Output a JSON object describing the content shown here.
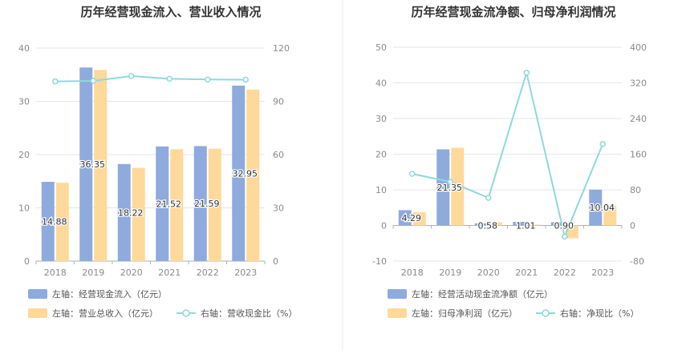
{
  "colors": {
    "bar_left": "#8FAADC",
    "bar_right": "#FFD99A",
    "line": "#8FD9DC",
    "grid": "#E6E6E6",
    "axis": "#B0B0B0"
  },
  "chart_data": [
    {
      "type": "bar",
      "title": "历年经营现金流入、营业收入情况",
      "categories": [
        "2018",
        "2019",
        "2020",
        "2021",
        "2022",
        "2023"
      ],
      "left_ylim": [
        0,
        40
      ],
      "left_ticks": [
        "0",
        "10",
        "20",
        "30",
        "40"
      ],
      "right_ylim": [
        0,
        120
      ],
      "right_ticks": [
        "0",
        "30",
        "60",
        "90",
        "120"
      ],
      "series": [
        {
          "name": "左轴：经营现金流入（亿元）",
          "axis": "left",
          "kind": "bar",
          "values": [
            14.88,
            36.35,
            18.22,
            21.52,
            21.59,
            32.95
          ]
        },
        {
          "name": "左轴：营业总收入（亿元）",
          "axis": "left",
          "kind": "bar",
          "values": [
            14.7,
            35.9,
            17.5,
            21.0,
            21.1,
            32.2
          ]
        },
        {
          "name": "右轴：营收现金比（%）",
          "axis": "right",
          "kind": "line",
          "values": [
            101.2,
            101.5,
            104.2,
            102.7,
            102.3,
            102.2
          ]
        }
      ],
      "data_labels": [
        "14.88",
        "36.35",
        "18.22",
        "21.52",
        "21.59",
        "32.95"
      ],
      "legend": [
        {
          "label": "左轴：经营现金流入（亿元）",
          "kind": "bar-left"
        },
        {
          "label": "左轴：营业总收入（亿元）",
          "kind": "bar-right"
        },
        {
          "label": "右轴：营收现金比（%）",
          "kind": "line"
        }
      ],
      "grid": true
    },
    {
      "type": "bar",
      "title": "历年经营现金流净额、归母净利润情况",
      "categories": [
        "2018",
        "2019",
        "2020",
        "2021",
        "2022",
        "2023"
      ],
      "left_ylim": [
        -10,
        50
      ],
      "left_ticks": [
        "-10",
        "0",
        "10",
        "20",
        "30",
        "40",
        "50"
      ],
      "right_ylim": [
        -80,
        400
      ],
      "right_ticks": [
        "-80",
        "0",
        "80",
        "160",
        "240",
        "320",
        "400"
      ],
      "series": [
        {
          "name": "左轴：经营活动现金流净额（亿元）",
          "axis": "left",
          "kind": "bar",
          "values": [
            4.29,
            21.35,
            0.58,
            1.01,
            0.9,
            10.04
          ]
        },
        {
          "name": "左轴：归母净利润（亿元）",
          "axis": "left",
          "kind": "bar",
          "values": [
            3.7,
            21.8,
            0.9,
            0.25,
            -3.6,
            5.5
          ]
        },
        {
          "name": "右轴：净现比（%）",
          "axis": "right",
          "kind": "line",
          "values": [
            116,
            98,
            62,
            343,
            -25,
            183
          ]
        }
      ],
      "data_labels": [
        "4.29",
        "21.35",
        "0.58",
        "1.01",
        "0.90",
        "10.04"
      ],
      "legend": [
        {
          "label": "左轴：经营活动现金流净额（亿元）",
          "kind": "bar-left"
        },
        {
          "label": "左轴：归母净利润（亿元）",
          "kind": "bar-right"
        },
        {
          "label": "右轴：净现比（%）",
          "kind": "line"
        }
      ],
      "grid": true
    }
  ]
}
